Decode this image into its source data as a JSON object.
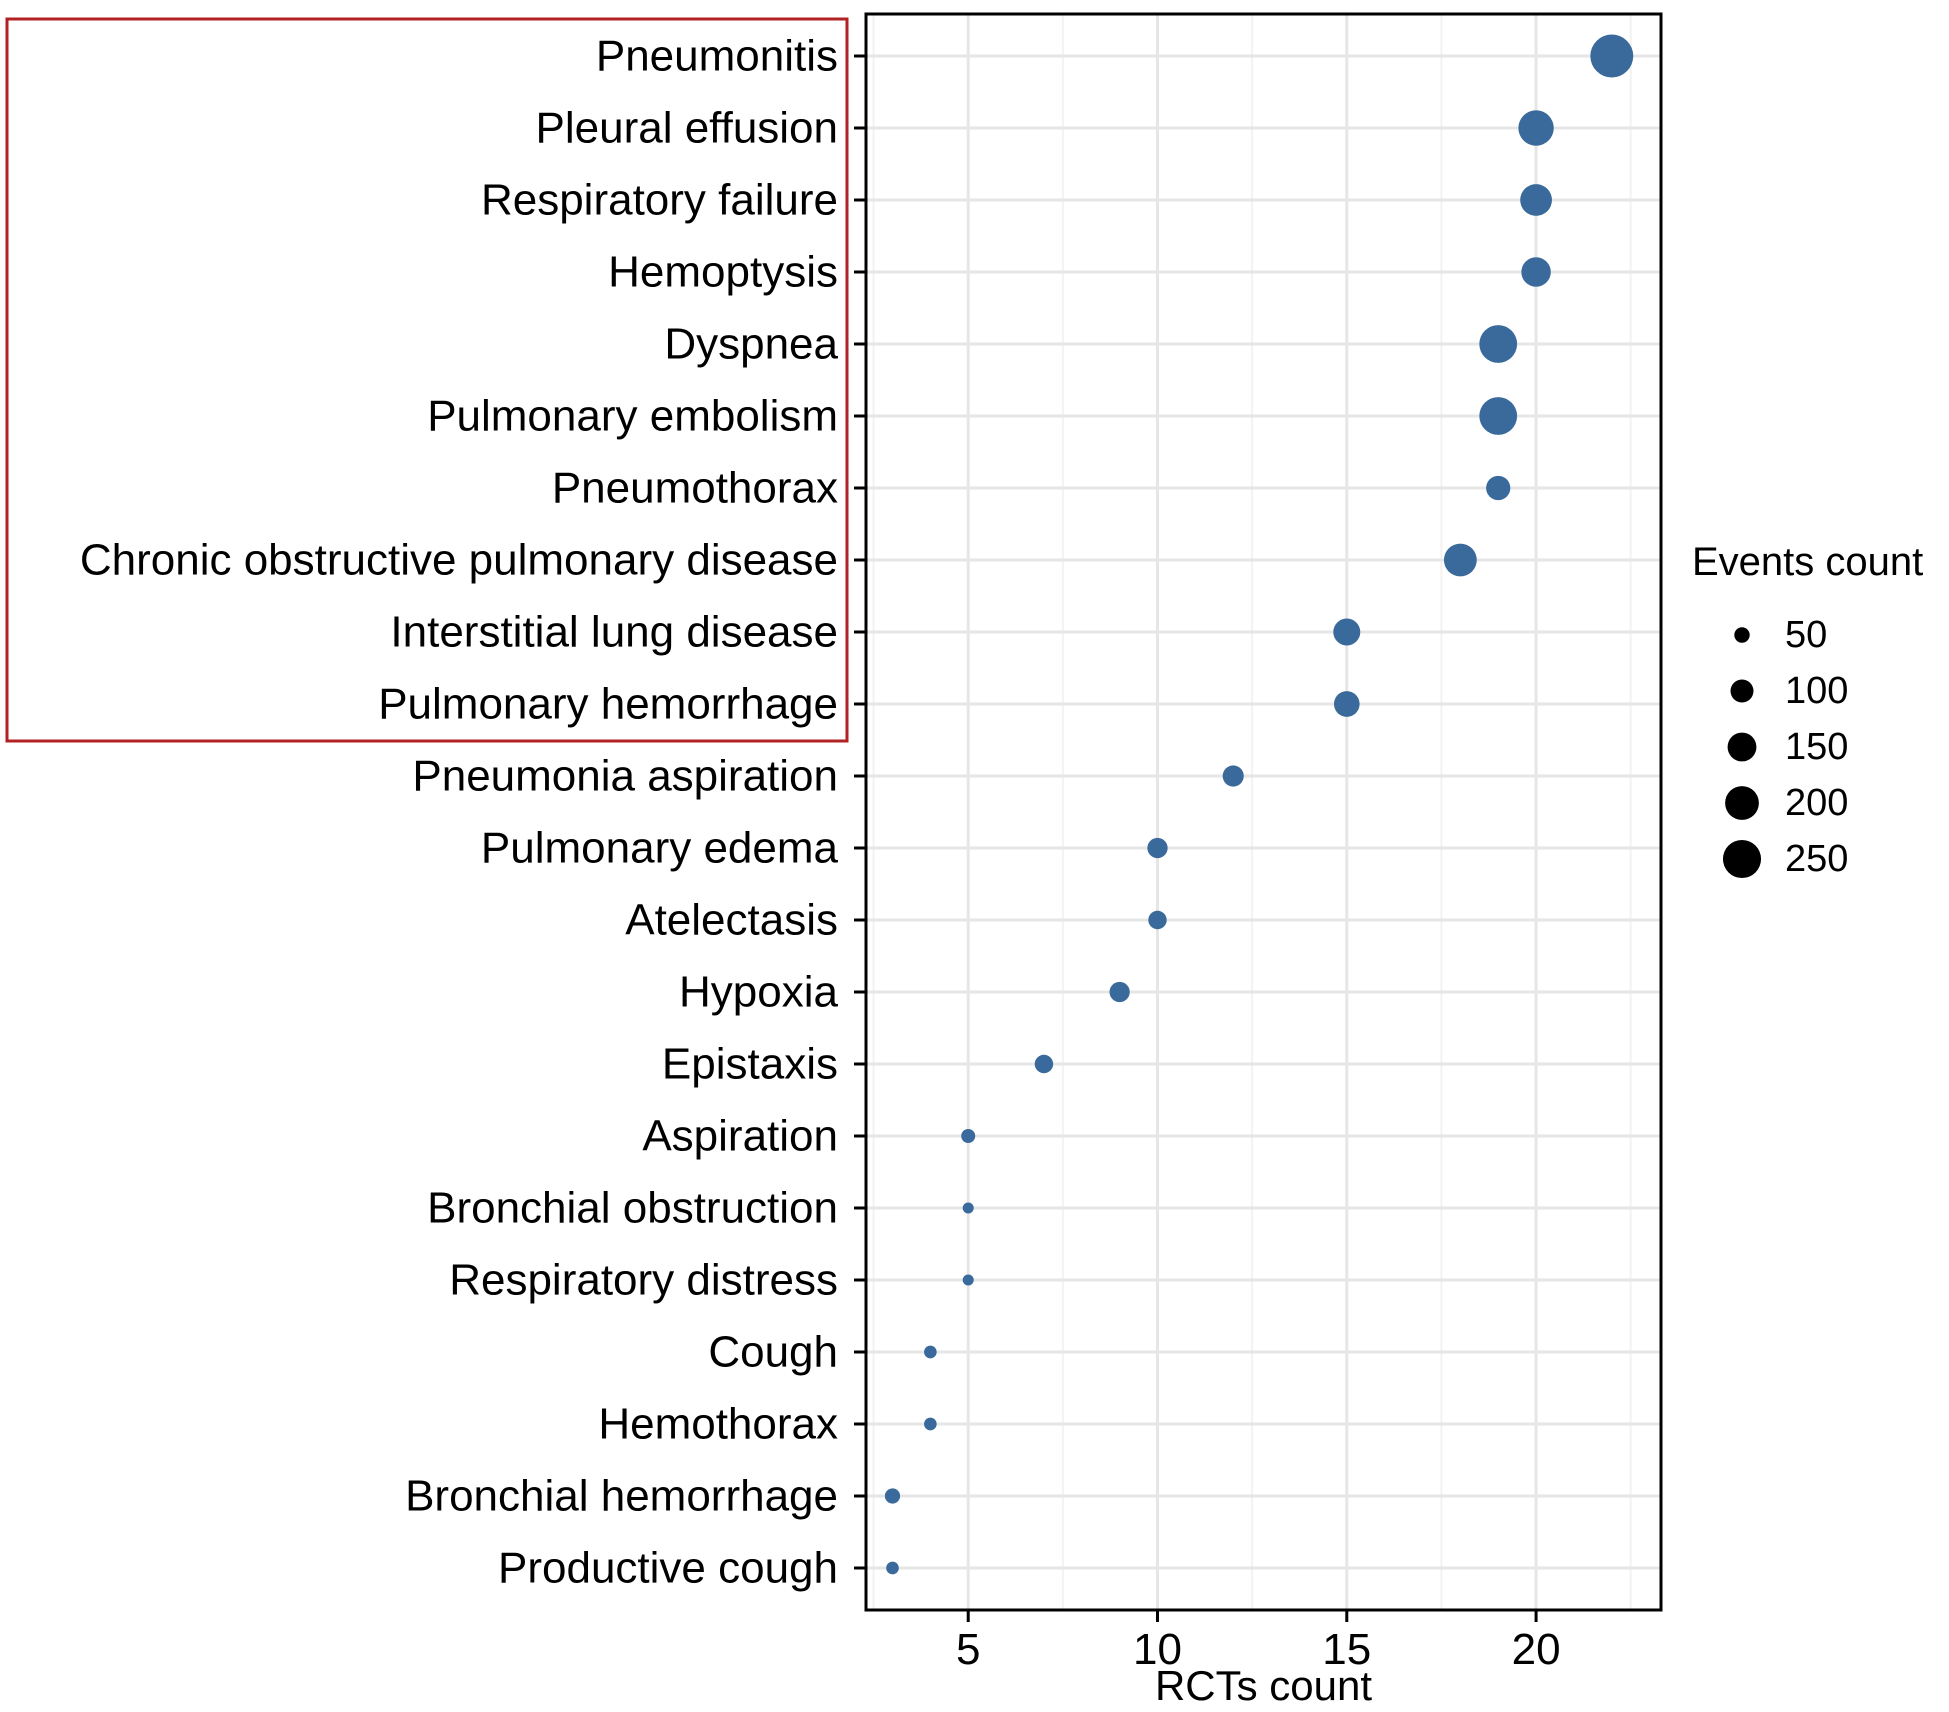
{
  "colors": {
    "point": "#3a6a9b",
    "grid": "#e6e6e6",
    "highlight_box": "#b22222",
    "axis": "#000000",
    "legend_point": "#000000"
  },
  "chart_data": {
    "type": "scatter",
    "xlabel": "RCTs count",
    "ylabel": "",
    "xlim": [
      2.3,
      23.3
    ],
    "xticks": [
      5,
      10,
      15,
      20
    ],
    "xtick_labels": [
      "5",
      "10",
      "15",
      "20"
    ],
    "grid": true,
    "legend": {
      "title": "Events count",
      "placement": "right",
      "sizes": [
        50,
        100,
        150,
        200,
        250
      ],
      "labels": [
        "50",
        "100",
        "150",
        "200",
        "250"
      ]
    },
    "highlight": {
      "from_category": "Pneumonitis",
      "to_category": "Pulmonary hemorrhage"
    },
    "points": [
      {
        "category": "Pneumonitis",
        "rcts": 22,
        "events": 260
      },
      {
        "category": "Pleural effusion",
        "rcts": 20,
        "events": 175
      },
      {
        "category": "Respiratory failure",
        "rcts": 20,
        "events": 140
      },
      {
        "category": "Hemoptysis",
        "rcts": 20,
        "events": 120
      },
      {
        "category": "Dyspnea",
        "rcts": 19,
        "events": 200
      },
      {
        "category": "Pulmonary embolism",
        "rcts": 19,
        "events": 200
      },
      {
        "category": "Pneumothorax",
        "rcts": 19,
        "events": 80
      },
      {
        "category": "Chronic obstructive pulmonary disease",
        "rcts": 18,
        "events": 150
      },
      {
        "category": "Interstitial lung disease",
        "rcts": 15,
        "events": 100
      },
      {
        "category": "Pulmonary hemorrhage",
        "rcts": 15,
        "events": 90
      },
      {
        "category": "Pneumonia aspiration",
        "rcts": 12,
        "events": 60
      },
      {
        "category": "Pulmonary edema",
        "rcts": 10,
        "events": 55
      },
      {
        "category": "Atelectasis",
        "rcts": 10,
        "events": 45
      },
      {
        "category": "Hypoxia",
        "rcts": 9,
        "events": 55
      },
      {
        "category": "Epistaxis",
        "rcts": 7,
        "events": 45
      },
      {
        "category": "Aspiration",
        "rcts": 5,
        "events": 25
      },
      {
        "category": "Bronchial obstruction",
        "rcts": 5,
        "events": 15
      },
      {
        "category": "Respiratory distress",
        "rcts": 5,
        "events": 15
      },
      {
        "category": "Cough",
        "rcts": 4,
        "events": 20
      },
      {
        "category": "Hemothorax",
        "rcts": 4,
        "events": 20
      },
      {
        "category": "Bronchial hemorrhage",
        "rcts": 3,
        "events": 30
      },
      {
        "category": "Productive cough",
        "rcts": 3,
        "events": 20
      }
    ]
  }
}
